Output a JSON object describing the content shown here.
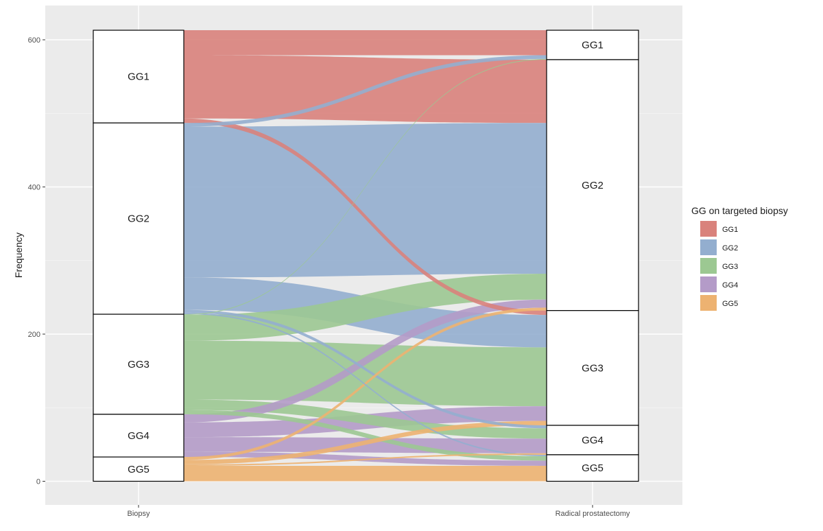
{
  "chart_data": {
    "type": "alluvial",
    "title": "",
    "xlabel": "",
    "ylabel": "Frequency",
    "ylim": [
      0,
      620
    ],
    "y_ticks": [
      0,
      200,
      400,
      600
    ],
    "x_ticks": [
      "Biopsy",
      "Radical prostatectomy"
    ],
    "legend_title": "GG on targeted biopsy",
    "legend_position": "right",
    "fill_variable": "GG on targeted biopsy",
    "categories": [
      "GG1",
      "GG2",
      "GG3",
      "GG4",
      "GG5"
    ],
    "colors": {
      "GG1": "#D9827C",
      "GG2": "#93AECF",
      "GG3": "#9CC892",
      "GG4": "#B49BC8",
      "GG5": "#EDB271"
    },
    "strata": {
      "Biopsy": [
        {
          "label": "GG1",
          "count": 126
        },
        {
          "label": "GG2",
          "count": 260
        },
        {
          "label": "GG3",
          "count": 136
        },
        {
          "label": "GG4",
          "count": 58
        },
        {
          "label": "GG5",
          "count": 33
        }
      ],
      "Radical prostatectomy": [
        {
          "label": "GG1",
          "count": 40
        },
        {
          "label": "GG2",
          "count": 341
        },
        {
          "label": "GG3",
          "count": 156
        },
        {
          "label": "GG4",
          "count": 40
        },
        {
          "label": "GG5",
          "count": 36
        }
      ]
    },
    "flows": [
      {
        "from": "GG1",
        "to": "GG1",
        "value": 34
      },
      {
        "from": "GG1",
        "to": "GG2",
        "value": 86
      },
      {
        "from": "GG1",
        "to": "GG3",
        "value": 6
      },
      {
        "from": "GG2",
        "to": "GG1",
        "value": 5
      },
      {
        "from": "GG2",
        "to": "GG2",
        "value": 205
      },
      {
        "from": "GG2",
        "to": "GG3",
        "value": 44
      },
      {
        "from": "GG2",
        "to": "GG4",
        "value": 4
      },
      {
        "from": "GG2",
        "to": "GG5",
        "value": 2
      },
      {
        "from": "GG3",
        "to": "GG1",
        "value": 1
      },
      {
        "from": "GG3",
        "to": "GG2",
        "value": 35
      },
      {
        "from": "GG3",
        "to": "GG3",
        "value": 80
      },
      {
        "from": "GG3",
        "to": "GG4",
        "value": 14
      },
      {
        "from": "GG3",
        "to": "GG5",
        "value": 6
      },
      {
        "from": "GG4",
        "to": "GG2",
        "value": 11
      },
      {
        "from": "GG4",
        "to": "GG3",
        "value": 20
      },
      {
        "from": "GG4",
        "to": "GG4",
        "value": 20
      },
      {
        "from": "GG4",
        "to": "GG5",
        "value": 7
      },
      {
        "from": "GG5",
        "to": "GG2",
        "value": 4
      },
      {
        "from": "GG5",
        "to": "GG3",
        "value": 6
      },
      {
        "from": "GG5",
        "to": "GG4",
        "value": 2
      },
      {
        "from": "GG5",
        "to": "GG5",
        "value": 21
      }
    ]
  }
}
